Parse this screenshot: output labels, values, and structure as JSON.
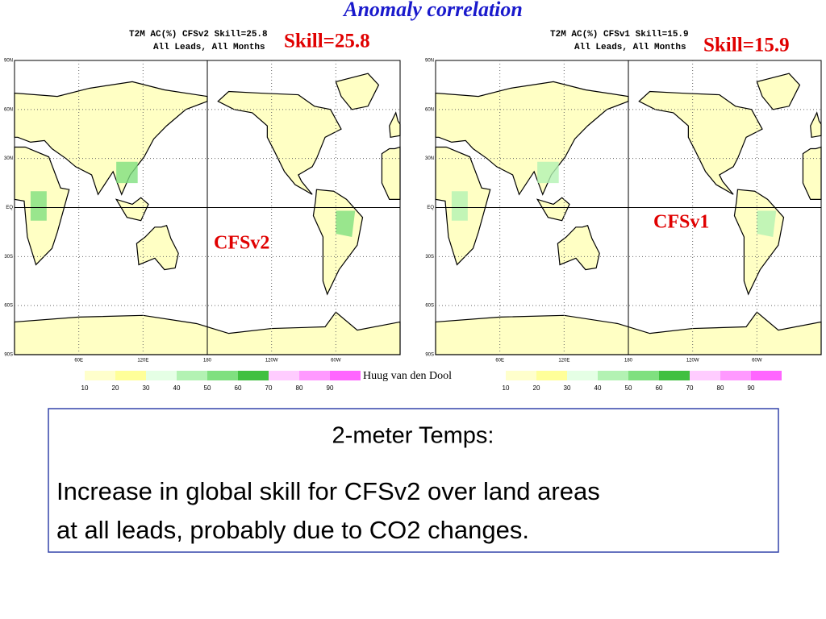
{
  "title": "Anomaly correlation",
  "credit": "Huug van den Dool",
  "panels": [
    {
      "header": [
        "T2M AC(%) CFSv2 Skill=25.8",
        "All Leads, All Months"
      ],
      "skill": "Skill=25.8",
      "model": "CFSv2"
    },
    {
      "header": [
        "T2M AC(%) CFSv1 Skill=15.9",
        "All Leads, All Months"
      ],
      "skill": "Skill=15.9",
      "model": "CFSv1"
    }
  ],
  "map_axes": {
    "lat_labels": [
      "90N",
      "60N",
      "30N",
      "EQ",
      "30S",
      "60S",
      "90S"
    ],
    "lon_labels": [
      "60E",
      "120E",
      "180",
      "120W",
      "60W"
    ]
  },
  "colorbar": {
    "labels": [
      10,
      20,
      30,
      40,
      50,
      60,
      70,
      80,
      90
    ]
  },
  "text_box": {
    "heading": "2-meter Temps:",
    "lines": [
      "Increase in global skill for CFSv2 over land areas",
      "at all leads, probably due to CO2 changes."
    ]
  }
}
